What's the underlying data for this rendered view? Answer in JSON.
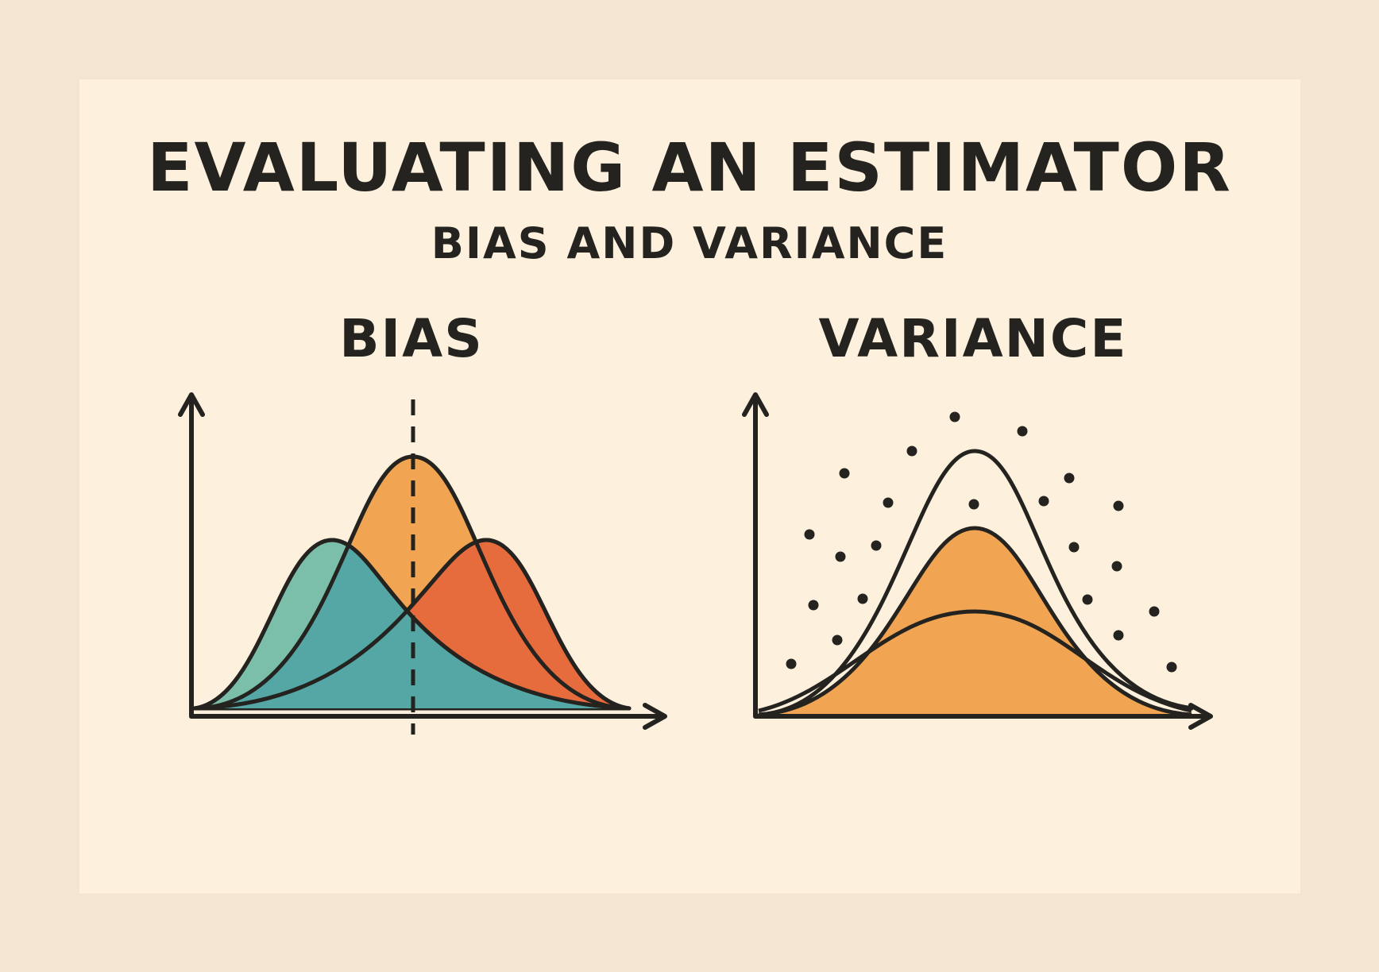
{
  "title": "EVALUATING AN ESTIMATOR",
  "subtitle": "BIAS AND VARIANCE",
  "panels": {
    "bias": {
      "title": "BIAS"
    },
    "variance": {
      "title": "VARIANCE"
    }
  },
  "colors": {
    "background": "#f3e5cf",
    "panel": "#fdf0dc",
    "ink": "#24231f",
    "teal": "#5aa9a2",
    "orange": "#f1a552",
    "red_orange": "#e66b3d"
  },
  "icons": [
    "y-axis-arrow",
    "x-axis-arrow",
    "dashed-true-value-line",
    "scatter-dots"
  ]
}
